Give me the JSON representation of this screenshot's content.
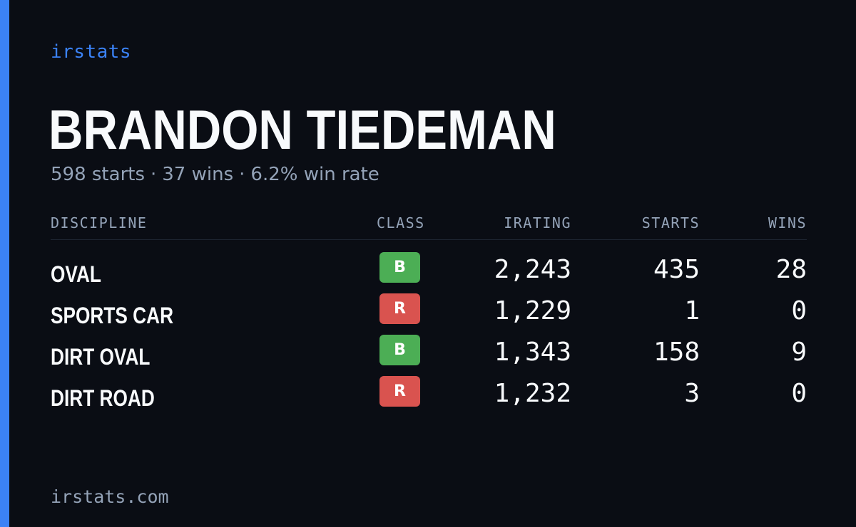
{
  "brand": "irstats",
  "player": {
    "name": "BRANDON TIEDEMAN",
    "starts_text": "598 starts",
    "wins_text": "37 wins",
    "winrate_text": "6.2% win rate",
    "separator": "·"
  },
  "table": {
    "headers": {
      "discipline": "DISCIPLINE",
      "class": "CLASS",
      "irating": "IRATING",
      "starts": "STARTS",
      "wins": "WINS"
    },
    "rows": [
      {
        "discipline": "OVAL",
        "class": "B",
        "irating": "2,243",
        "starts": "435",
        "wins": "28"
      },
      {
        "discipline": "SPORTS CAR",
        "class": "R",
        "irating": "1,229",
        "starts": "1",
        "wins": "0"
      },
      {
        "discipline": "DIRT OVAL",
        "class": "B",
        "irating": "1,343",
        "starts": "158",
        "wins": "9"
      },
      {
        "discipline": "DIRT ROAD",
        "class": "R",
        "irating": "1,232",
        "starts": "3",
        "wins": "0"
      }
    ]
  },
  "class_colors": {
    "B": "#4cae55",
    "R": "#d9534f"
  },
  "colors": {
    "accent": "#3b82f6",
    "background": "#0a0d14",
    "muted_text": "#94a3b8",
    "primary_text": "#f8fafc"
  },
  "footer": {
    "domain": "irstats.com"
  }
}
